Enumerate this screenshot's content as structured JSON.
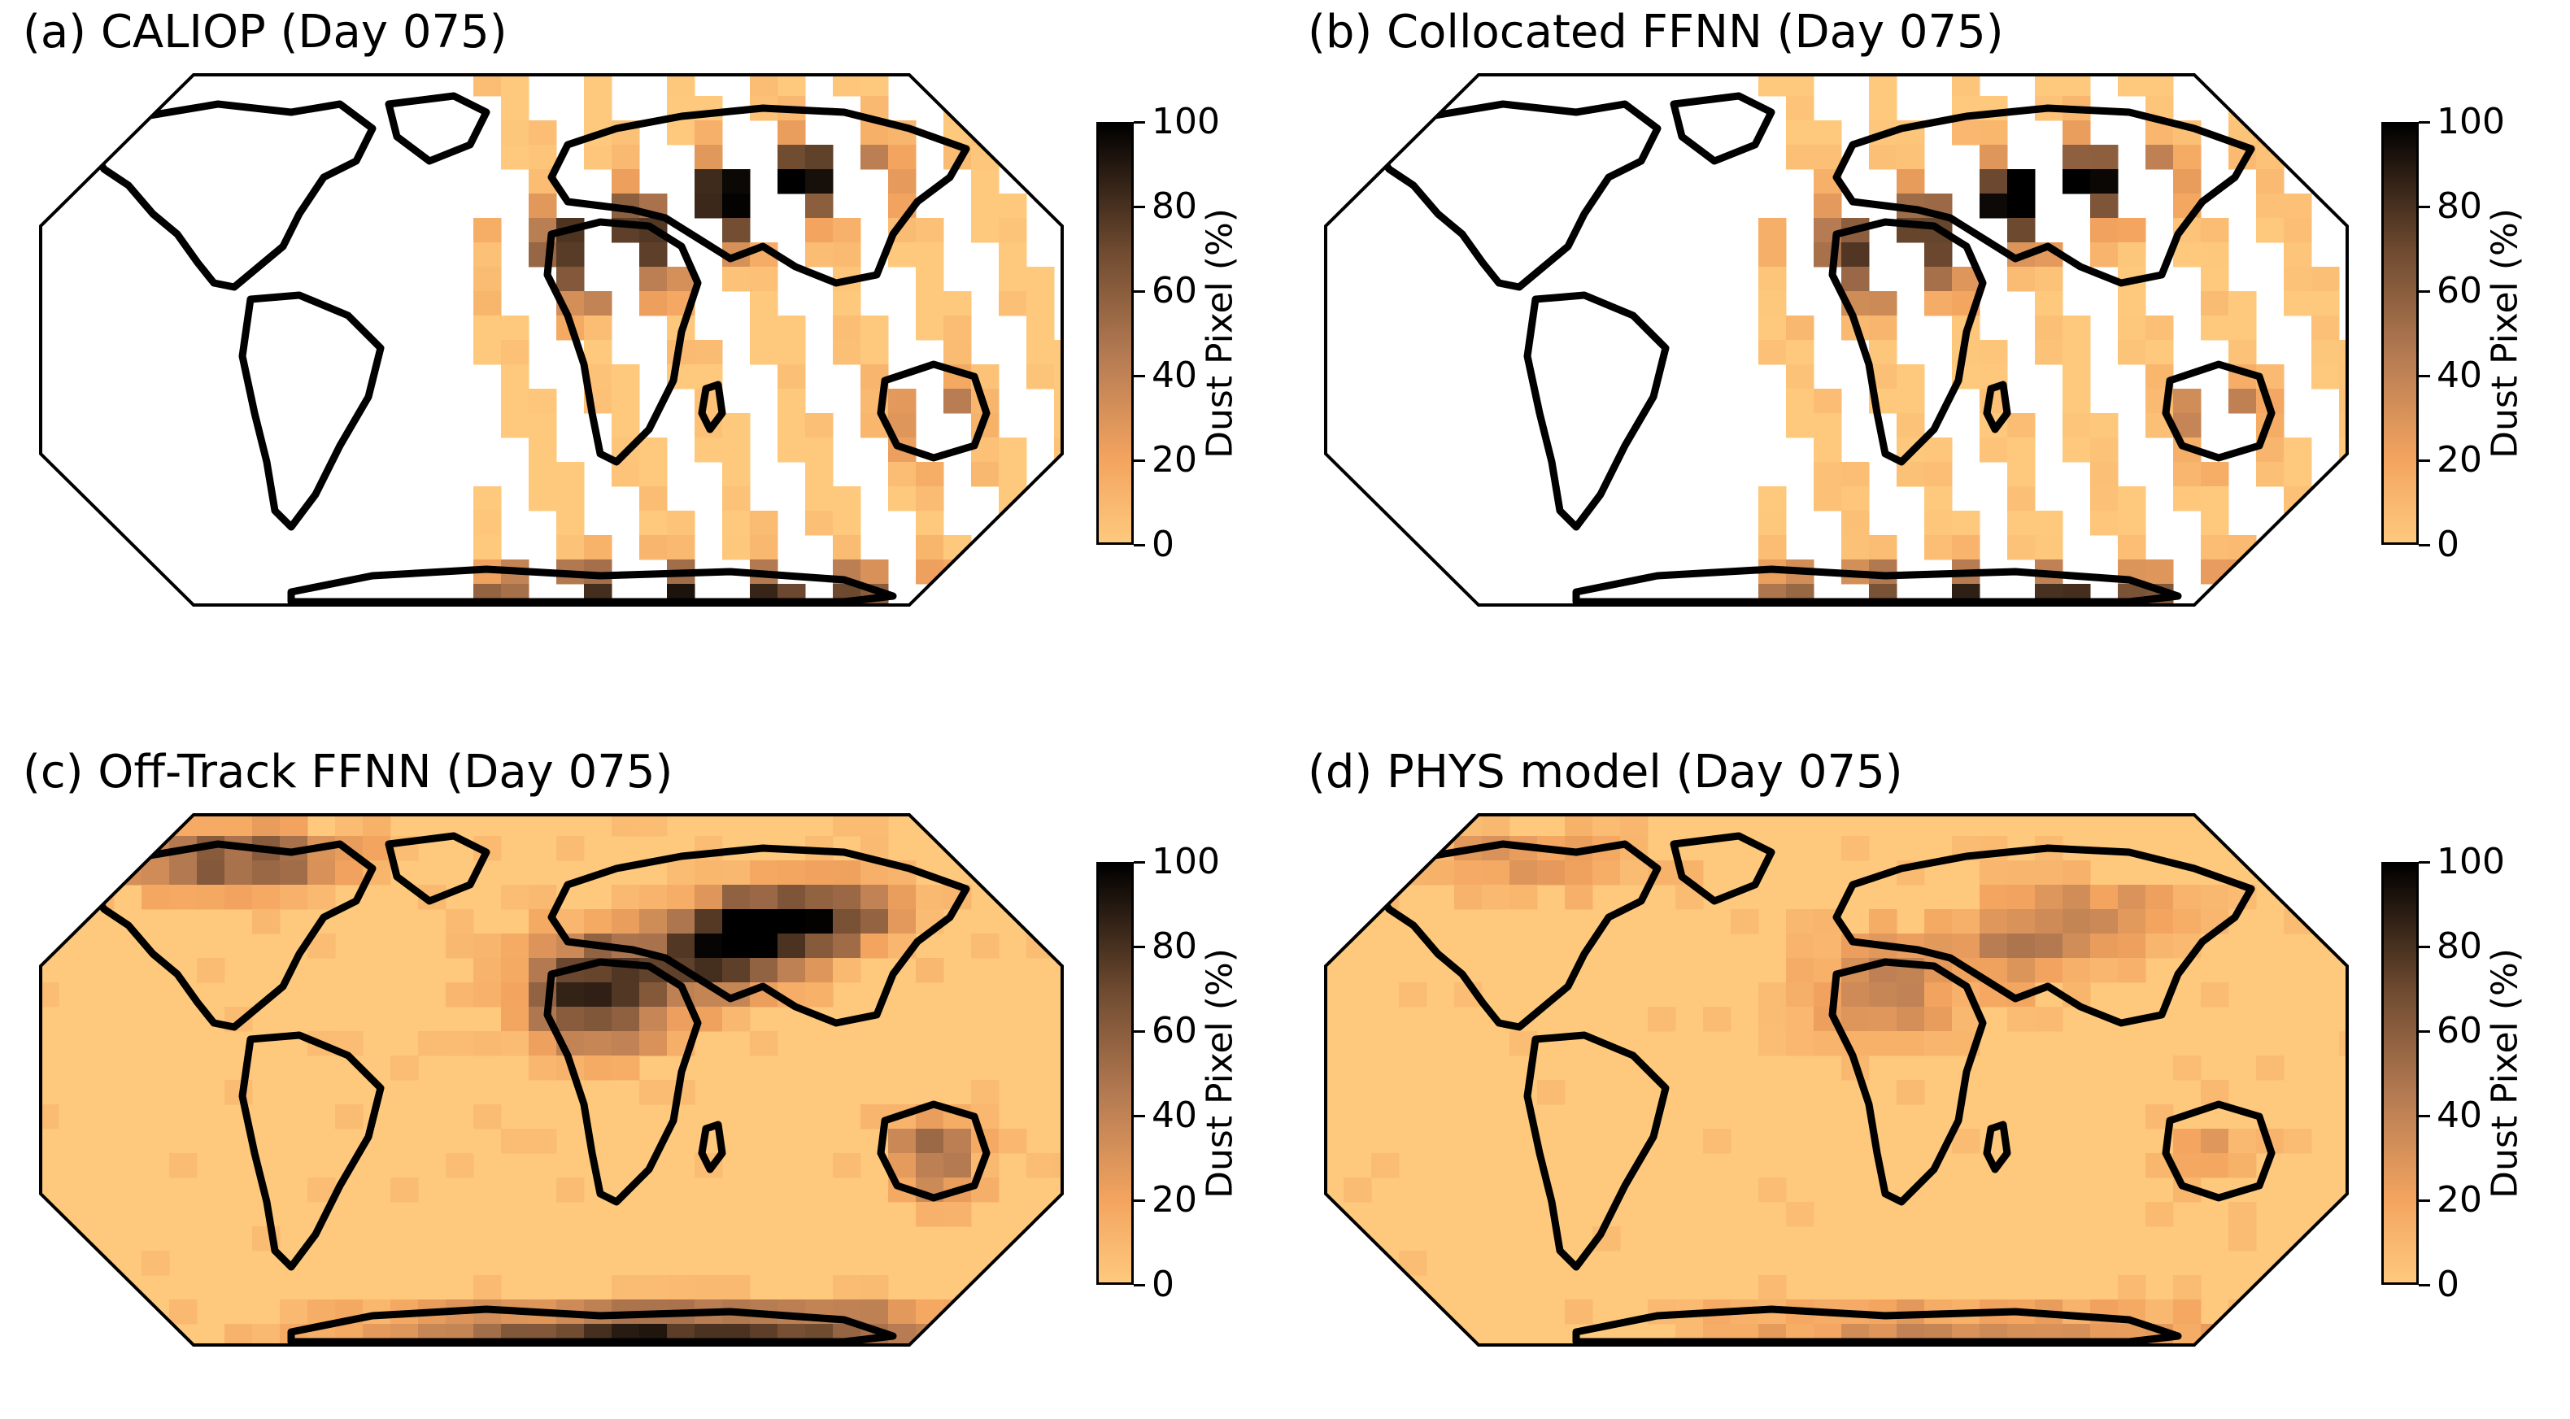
{
  "figure": {
    "colorbar_label": "Dust Pixel (%)",
    "colorbar_ticks": [
      "0",
      "20",
      "40",
      "60",
      "80",
      "100"
    ],
    "colormap": [
      "#fec97d",
      "#f3a45f",
      "#b47a52",
      "#6e4a30",
      "#000000"
    ],
    "coastline_color": "#000000",
    "panels": [
      {
        "id": "a",
        "title": "(a) CALIOP (Day 075)",
        "coverage": "along-track swaths",
        "background_fill": "#ffffff"
      },
      {
        "id": "b",
        "title": "(b) Collocated FFNN (Day 075)",
        "coverage": "along-track swaths",
        "background_fill": "#ffffff"
      },
      {
        "id": "c",
        "title": "(c) Off-Track FFNN (Day 075)",
        "coverage": "global",
        "background_fill": "#fec97d"
      },
      {
        "id": "d",
        "title": "(d) PHYS model (Day 075)",
        "coverage": "global",
        "background_fill": "#fec97d"
      }
    ]
  }
}
